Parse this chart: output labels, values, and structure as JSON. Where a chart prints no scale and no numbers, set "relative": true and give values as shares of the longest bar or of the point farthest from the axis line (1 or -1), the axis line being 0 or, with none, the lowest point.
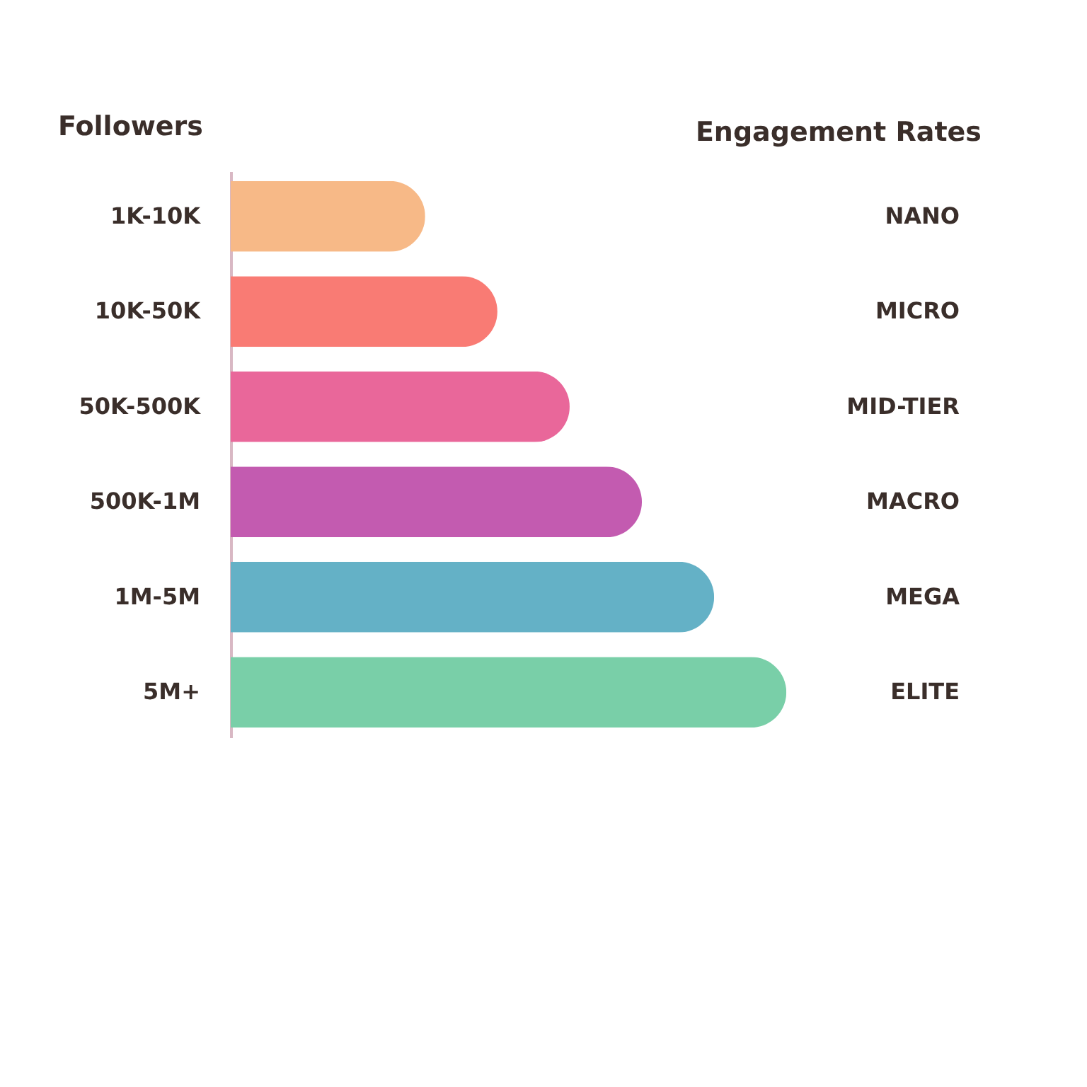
{
  "chart_data": {
    "type": "bar",
    "orientation": "horizontal",
    "relative": true,
    "xlabel": "Engagement Rates",
    "ylabel": "Followers",
    "categories": [
      "1K-10K",
      "10K-50K",
      "50K-500K",
      "500K-1M",
      "1M-5M",
      "5M+"
    ],
    "values": [
      0.35,
      0.48,
      0.61,
      0.74,
      0.87,
      1.0
    ],
    "colors": [
      "#f7b987",
      "#f97b74",
      "#e9679a",
      "#c35bb0",
      "#64b1c6",
      "#79cfa8"
    ],
    "annotations": [
      "NANO",
      "MICRO",
      "MID-TIER",
      "MACRO",
      "MEGA",
      "ELITE"
    ]
  }
}
